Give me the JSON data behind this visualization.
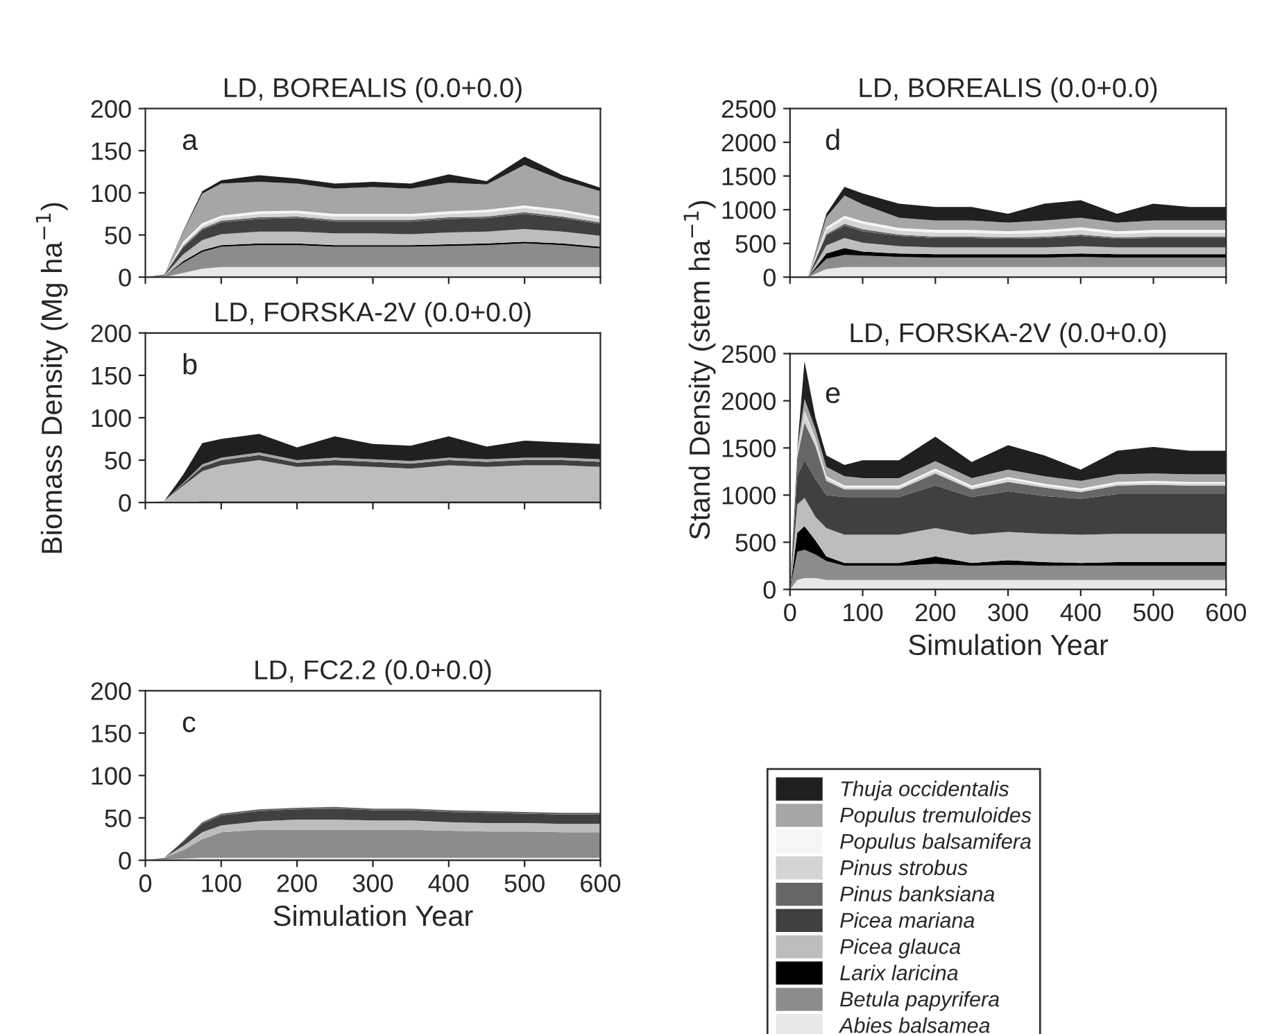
{
  "chart_data": [
    {
      "type": "area",
      "stacked": true,
      "title": "LD, BOREALIS (0.0+0.0)",
      "annotations": [
        "a"
      ],
      "ylabel": "Biomass Density (Mg ha$^{−1}$)",
      "tick_labels": "y",
      "legend": "bottom right",
      "xlim": [
        0,
        600
      ],
      "ylim": [
        0,
        200
      ],
      "yticks": [
        0,
        50,
        100,
        150,
        200
      ],
      "xticks": [
        0,
        100,
        200,
        300,
        400,
        500,
        600
      ],
      "x": [
        0,
        25,
        50,
        75,
        100,
        150,
        200,
        250,
        300,
        350,
        400,
        450,
        500,
        550,
        600
      ],
      "series": [
        {
          "name": "Abies balsamea",
          "color": "#e8e8e8",
          "values": [
            0,
            0,
            5,
            10,
            12,
            12,
            12,
            12,
            12,
            12,
            12,
            12,
            12,
            12,
            12
          ]
        },
        {
          "name": "Betula papyrifera",
          "color": "#8c8c8c",
          "values": [
            0,
            1,
            12,
            20,
            24,
            26,
            26,
            24,
            24,
            24,
            25,
            26,
            28,
            26,
            22
          ]
        },
        {
          "name": "Larix laricina",
          "color": "#000000",
          "values": [
            0,
            0,
            2,
            2,
            2,
            2,
            2,
            2,
            2,
            2,
            2,
            2,
            2,
            2,
            2
          ]
        },
        {
          "name": "Picea glauca",
          "color": "#bdbdbd",
          "values": [
            0,
            1,
            8,
            12,
            13,
            14,
            14,
            14,
            14,
            13,
            14,
            14,
            15,
            14,
            13
          ]
        },
        {
          "name": "Picea mariana",
          "color": "#404040",
          "values": [
            0,
            1,
            8,
            12,
            14,
            15,
            16,
            14,
            14,
            15,
            16,
            16,
            18,
            16,
            14
          ]
        },
        {
          "name": "Pinus banksiana",
          "color": "#666666",
          "values": [
            0,
            0,
            2,
            2,
            2,
            2,
            2,
            2,
            2,
            2,
            2,
            2,
            2,
            2,
            2
          ]
        },
        {
          "name": "Pinus strobus",
          "color": "#d4d4d4",
          "values": [
            0,
            0,
            2,
            3,
            3,
            4,
            4,
            4,
            4,
            4,
            4,
            5,
            5,
            5,
            4
          ]
        },
        {
          "name": "Populus balsamifera",
          "color": "#f5f5f5",
          "values": [
            0,
            0,
            3,
            3,
            3,
            3,
            3,
            3,
            3,
            3,
            3,
            3,
            3,
            3,
            3
          ]
        },
        {
          "name": "Populus tremuloides",
          "color": "#a6a6a6",
          "values": [
            0,
            0,
            12,
            35,
            38,
            35,
            32,
            30,
            32,
            30,
            34,
            30,
            48,
            35,
            30
          ]
        },
        {
          "name": "Thuja occidentalis",
          "color": "#202020",
          "values": [
            0,
            0,
            1,
            3,
            4,
            8,
            6,
            6,
            6,
            6,
            10,
            4,
            10,
            6,
            4
          ]
        }
      ]
    },
    {
      "type": "area",
      "stacked": true,
      "title": "LD, FORSKA-2V (0.0+0.0)",
      "annotations": [
        "b"
      ],
      "tick_labels": "y",
      "xlim": [
        0,
        600
      ],
      "ylim": [
        0,
        200
      ],
      "yticks": [
        0,
        50,
        100,
        150,
        200
      ],
      "xticks": [
        0,
        100,
        200,
        300,
        400,
        500,
        600
      ],
      "x": [
        0,
        25,
        50,
        75,
        100,
        150,
        200,
        250,
        300,
        350,
        400,
        450,
        500,
        550,
        600
      ],
      "series": [
        {
          "color": "#8c8c8c",
          "values": [
            0,
            0,
            0,
            2,
            2,
            2,
            2,
            2,
            2,
            2,
            2,
            2,
            2,
            2,
            2
          ]
        },
        {
          "color": "#bdbdbd",
          "values": [
            0,
            2,
            20,
            35,
            42,
            48,
            40,
            42,
            40,
            38,
            42,
            40,
            42,
            42,
            40
          ]
        },
        {
          "color": "#404040",
          "values": [
            0,
            0,
            2,
            5,
            6,
            6,
            5,
            6,
            6,
            6,
            6,
            6,
            6,
            6,
            6
          ]
        },
        {
          "color": "#a6a6a6",
          "values": [
            0,
            0,
            1,
            3,
            3,
            3,
            3,
            3,
            3,
            3,
            3,
            3,
            3,
            3,
            3
          ]
        },
        {
          "color": "#202020",
          "values": [
            0,
            0,
            10,
            25,
            22,
            22,
            15,
            25,
            18,
            18,
            25,
            15,
            20,
            18,
            18
          ]
        }
      ]
    },
    {
      "type": "area",
      "stacked": true,
      "title": "LD, FC2.2 (0.0+0.0)",
      "annotations": [
        "c"
      ],
      "xlabel": "Simulation Year",
      "xlim": [
        0,
        600
      ],
      "ylim": [
        0,
        200
      ],
      "yticks": [
        0,
        50,
        100,
        150,
        200
      ],
      "xticks": [
        0,
        100,
        200,
        300,
        400,
        500,
        600
      ],
      "x": [
        0,
        25,
        50,
        75,
        100,
        150,
        200,
        250,
        300,
        350,
        400,
        450,
        500,
        550,
        600
      ],
      "series": [
        {
          "color": "#e8e8e8",
          "values": [
            0,
            1,
            2,
            3,
            3,
            3,
            3,
            3,
            3,
            3,
            3,
            3,
            3,
            3,
            3
          ]
        },
        {
          "color": "#8c8c8c",
          "values": [
            0,
            2,
            10,
            22,
            30,
            33,
            33,
            33,
            33,
            33,
            32,
            31,
            31,
            30,
            30
          ]
        },
        {
          "color": "#bdbdbd",
          "values": [
            0,
            0,
            5,
            8,
            8,
            10,
            12,
            12,
            11,
            11,
            10,
            10,
            10,
            10,
            10
          ]
        },
        {
          "color": "#404040",
          "values": [
            0,
            0,
            5,
            10,
            12,
            12,
            12,
            13,
            12,
            12,
            12,
            12,
            11,
            11,
            11
          ]
        },
        {
          "color": "#666666",
          "values": [
            0,
            0,
            1,
            2,
            2,
            2,
            2,
            2,
            2,
            2,
            2,
            2,
            2,
            2,
            2
          ]
        }
      ]
    },
    {
      "type": "area",
      "stacked": true,
      "title": "LD, BOREALIS (0.0+0.0)",
      "annotations": [
        "d"
      ],
      "ylabel": "Stand Density (stem ha$^{−1}$)",
      "tick_labels": "y",
      "xlim": [
        0,
        600
      ],
      "ylim": [
        0,
        2500
      ],
      "yticks": [
        0,
        500,
        1000,
        1500,
        2000,
        2500
      ],
      "xticks": [
        0,
        100,
        200,
        300,
        400,
        500,
        600
      ],
      "x": [
        0,
        25,
        50,
        75,
        100,
        150,
        200,
        250,
        300,
        350,
        400,
        450,
        500,
        550,
        600
      ],
      "series": [
        {
          "color": "#e8e8e8",
          "values": [
            0,
            0,
            120,
            150,
            150,
            150,
            150,
            150,
            150,
            150,
            150,
            150,
            150,
            150,
            150
          ]
        },
        {
          "color": "#8c8c8c",
          "values": [
            0,
            0,
            150,
            180,
            170,
            150,
            140,
            140,
            140,
            140,
            150,
            140,
            140,
            140,
            140
          ]
        },
        {
          "color": "#000000",
          "values": [
            0,
            0,
            80,
            100,
            60,
            50,
            50,
            50,
            50,
            50,
            50,
            50,
            50,
            50,
            50
          ]
        },
        {
          "color": "#bdbdbd",
          "values": [
            0,
            0,
            120,
            150,
            130,
            110,
            100,
            100,
            100,
            100,
            110,
            100,
            100,
            100,
            100
          ]
        },
        {
          "color": "#404040",
          "values": [
            0,
            0,
            150,
            180,
            170,
            150,
            140,
            140,
            130,
            140,
            150,
            130,
            140,
            140,
            140
          ]
        },
        {
          "color": "#666666",
          "values": [
            0,
            0,
            20,
            30,
            30,
            20,
            20,
            20,
            20,
            20,
            20,
            20,
            20,
            20,
            20
          ]
        },
        {
          "color": "#d4d4d4",
          "values": [
            0,
            0,
            60,
            80,
            80,
            60,
            60,
            60,
            50,
            60,
            70,
            50,
            60,
            60,
            60
          ]
        },
        {
          "color": "#f5f5f5",
          "values": [
            0,
            0,
            40,
            40,
            40,
            40,
            40,
            40,
            40,
            40,
            40,
            40,
            40,
            40,
            40
          ]
        },
        {
          "color": "#a6a6a6",
          "values": [
            0,
            0,
            150,
            300,
            250,
            150,
            140,
            140,
            130,
            140,
            140,
            130,
            140,
            140,
            140
          ]
        },
        {
          "color": "#202020",
          "values": [
            0,
            0,
            50,
            130,
            160,
            210,
            200,
            200,
            130,
            250,
            260,
            130,
            250,
            200,
            200
          ]
        }
      ]
    },
    {
      "type": "area",
      "stacked": true,
      "title": "LD, FORSKA-2V (0.0+0.0)",
      "annotations": [
        "e"
      ],
      "xlabel": "Simulation Year",
      "xlim": [
        0,
        600
      ],
      "ylim": [
        0,
        2500
      ],
      "yticks": [
        0,
        500,
        1000,
        1500,
        2000,
        2500
      ],
      "xticks": [
        0,
        100,
        200,
        300,
        400,
        500,
        600
      ],
      "x": [
        0,
        10,
        20,
        35,
        50,
        75,
        100,
        150,
        200,
        250,
        300,
        350,
        400,
        450,
        500,
        550,
        600
      ],
      "series": [
        {
          "color": "#e8e8e8",
          "values": [
            0,
            100,
            120,
            120,
            100,
            100,
            100,
            100,
            100,
            100,
            100,
            100,
            100,
            100,
            100,
            100,
            100
          ]
        },
        {
          "color": "#8c8c8c",
          "values": [
            0,
            300,
            300,
            250,
            200,
            150,
            150,
            150,
            170,
            150,
            160,
            150,
            150,
            150,
            150,
            150,
            150
          ]
        },
        {
          "color": "#000000",
          "values": [
            0,
            200,
            250,
            150,
            50,
            30,
            30,
            30,
            80,
            30,
            50,
            40,
            30,
            40,
            40,
            40,
            40
          ]
        },
        {
          "color": "#bdbdbd",
          "values": [
            0,
            300,
            300,
            250,
            300,
            300,
            300,
            300,
            300,
            300,
            300,
            300,
            300,
            300,
            300,
            300,
            300
          ]
        },
        {
          "color": "#404040",
          "values": [
            0,
            300,
            400,
            400,
            350,
            400,
            400,
            400,
            450,
            400,
            430,
            400,
            380,
            420,
            420,
            420,
            420
          ]
        },
        {
          "color": "#666666",
          "values": [
            0,
            200,
            400,
            350,
            150,
            80,
            80,
            80,
            130,
            80,
            100,
            90,
            70,
            90,
            100,
            90,
            90
          ]
        },
        {
          "color": "#d4d4d4",
          "values": [
            0,
            50,
            100,
            60,
            30,
            20,
            20,
            20,
            30,
            20,
            30,
            20,
            20,
            20,
            20,
            20,
            20
          ]
        },
        {
          "color": "#f5f5f5",
          "values": [
            0,
            0,
            20,
            20,
            20,
            20,
            20,
            20,
            20,
            20,
            20,
            20,
            20,
            20,
            20,
            20,
            20
          ]
        },
        {
          "color": "#a6a6a6",
          "values": [
            0,
            50,
            130,
            100,
            100,
            100,
            80,
            80,
            80,
            80,
            80,
            80,
            80,
            80,
            80,
            80,
            80
          ]
        },
        {
          "color": "#202020",
          "values": [
            0,
            0,
            400,
            120,
            120,
            120,
            190,
            190,
            260,
            170,
            260,
            220,
            120,
            250,
            280,
            250,
            250
          ]
        }
      ]
    }
  ]
}
